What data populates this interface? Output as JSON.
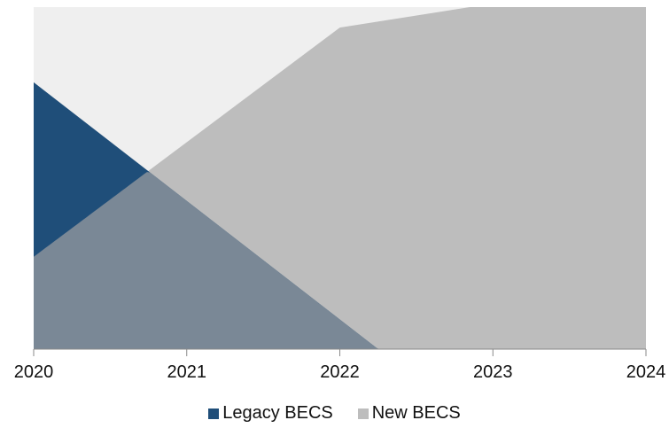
{
  "chart_data": {
    "type": "area",
    "x": [
      2020,
      2021,
      2022,
      2023,
      2024
    ],
    "tick_labels": [
      "2020",
      "2021",
      "2022",
      "2023",
      "2024"
    ],
    "xlim": [
      2020,
      2024
    ],
    "ylim": [
      0,
      100
    ],
    "grid": false,
    "legend_position": "bottom",
    "plot_background": "#efefef",
    "series": [
      {
        "name": "Legacy BECS",
        "color": "#1f4e79",
        "points": [
          [
            2020,
            78
          ],
          [
            2022.25,
            0
          ],
          [
            2024,
            0
          ]
        ]
      },
      {
        "name": "New BECS",
        "color": "#bdbdbd",
        "points": [
          [
            2020,
            27
          ],
          [
            2022,
            94
          ],
          [
            2022.85,
            100
          ],
          [
            2024,
            100
          ]
        ]
      }
    ],
    "overlap_color": "#7a8896"
  },
  "legend": {
    "items": [
      {
        "label": "Legacy BECS",
        "color": "#1f4e79"
      },
      {
        "label": "New BECS",
        "color": "#bdbdbd"
      }
    ]
  }
}
